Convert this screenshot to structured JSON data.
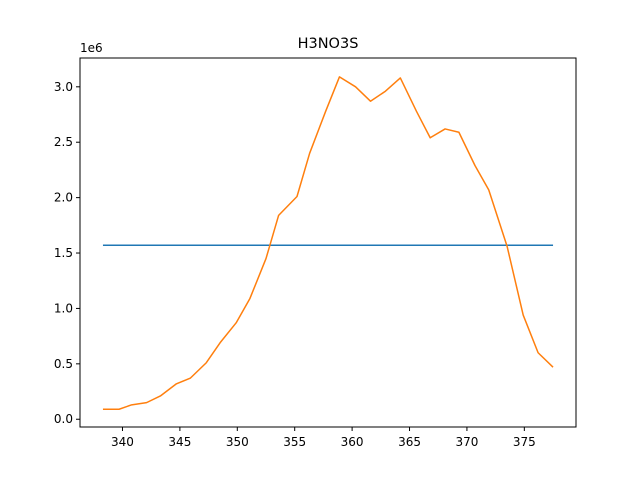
{
  "chart_data": {
    "type": "line",
    "title": "H3NO3S",
    "xlabel": "",
    "ylabel": "",
    "y_offset_label": "1e6",
    "xlim": [
      336.3,
      379.5
    ],
    "ylim": [
      -0.07,
      3.26
    ],
    "x_ticks": [
      340,
      345,
      350,
      355,
      360,
      365,
      370,
      375
    ],
    "y_ticks": [
      0.0,
      0.5,
      1.0,
      1.5,
      2.0,
      2.5,
      3.0
    ],
    "y_tick_labels": [
      "0.0",
      "0.5",
      "1.0",
      "1.5",
      "2.0",
      "2.5",
      "3.0"
    ],
    "grid": false,
    "series": [
      {
        "color": "#1f77b4",
        "x": [
          338.3,
          377.5
        ],
        "y": [
          1.57,
          1.57
        ]
      },
      {
        "color": "#ff7f0e",
        "x": [
          338.3,
          339.7,
          340.8,
          342.1,
          343.3,
          344.7,
          345.9,
          347.3,
          348.5,
          349.9,
          351.1,
          352.5,
          353.6,
          355.2,
          356.3,
          357.7,
          358.9,
          360.3,
          361.6,
          362.9,
          364.2,
          365.6,
          366.8,
          368.1,
          369.3,
          370.7,
          371.9,
          373.5,
          374.9,
          376.2,
          377.5
        ],
        "y": [
          0.09,
          0.09,
          0.13,
          0.15,
          0.21,
          0.32,
          0.37,
          0.51,
          0.69,
          0.87,
          1.09,
          1.45,
          1.84,
          2.01,
          2.4,
          2.78,
          3.09,
          3.0,
          2.87,
          2.96,
          3.08,
          2.78,
          2.54,
          2.62,
          2.59,
          2.29,
          2.07,
          1.56,
          0.94,
          0.6,
          0.47
        ]
      }
    ]
  }
}
